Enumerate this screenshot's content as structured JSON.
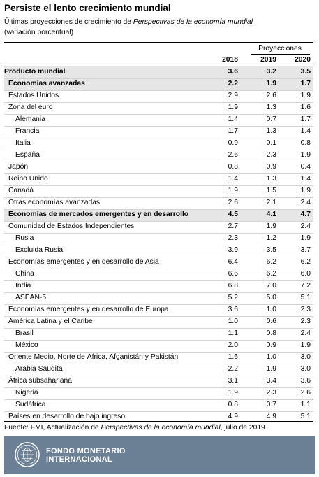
{
  "title": "Persiste el lento crecimiento mundial",
  "subtitle_prefix": "Últimas proyecciones de crecimiento de ",
  "subtitle_italic": "Perspectivas de la economía mundial",
  "subtitle_unit": "(variación porcentual)",
  "projections_label": "Proyecciones",
  "years": [
    "2018",
    "2019",
    "2020"
  ],
  "rows": [
    {
      "label": "Producto mundial",
      "indent": 0,
      "bold": true,
      "shade": true,
      "values": [
        "3.6",
        "3.2",
        "3.5"
      ]
    },
    {
      "label": "Economías avanzadas",
      "indent": 1,
      "bold": true,
      "shade": true,
      "values": [
        "2.2",
        "1.9",
        "1.7"
      ]
    },
    {
      "label": "Estados Unidos",
      "indent": 1,
      "bold": false,
      "values": [
        "2.9",
        "2.6",
        "1.9"
      ]
    },
    {
      "label": "Zona del euro",
      "indent": 1,
      "bold": false,
      "values": [
        "1.9",
        "1.3",
        "1.6"
      ]
    },
    {
      "label": "Alemania",
      "indent": 2,
      "bold": false,
      "values": [
        "1.4",
        "0.7",
        "1.7"
      ]
    },
    {
      "label": "Francia",
      "indent": 2,
      "bold": false,
      "values": [
        "1.7",
        "1.3",
        "1.4"
      ]
    },
    {
      "label": "Italia",
      "indent": 2,
      "bold": false,
      "values": [
        "0.9",
        "0.1",
        "0.8"
      ]
    },
    {
      "label": "España",
      "indent": 2,
      "bold": false,
      "values": [
        "2.6",
        "2.3",
        "1.9"
      ]
    },
    {
      "label": "Japón",
      "indent": 1,
      "bold": false,
      "values": [
        "0.8",
        "0.9",
        "0.4"
      ]
    },
    {
      "label": "Reino Unido",
      "indent": 1,
      "bold": false,
      "values": [
        "1.4",
        "1.3",
        "1.4"
      ]
    },
    {
      "label": "Canadá",
      "indent": 1,
      "bold": false,
      "values": [
        "1.9",
        "1.5",
        "1.9"
      ]
    },
    {
      "label": "Otras economías avanzadas",
      "indent": 1,
      "bold": false,
      "values": [
        "2.6",
        "2.1",
        "2.4"
      ]
    },
    {
      "label": "Economías de mercados emergentes y en desarrollo",
      "indent": 1,
      "bold": true,
      "shade": true,
      "values": [
        "4.5",
        "4.1",
        "4.7"
      ]
    },
    {
      "label": "Comunidad de Estados Independientes",
      "indent": 1,
      "bold": false,
      "values": [
        "2.7",
        "1.9",
        "2.4"
      ]
    },
    {
      "label": "Rusia",
      "indent": 2,
      "bold": false,
      "values": [
        "2.3",
        "1.2",
        "1.9"
      ]
    },
    {
      "label": "Excluida Rusia",
      "indent": 2,
      "bold": false,
      "values": [
        "3.9",
        "3.5",
        "3.7"
      ]
    },
    {
      "label": "Economías emergentes y en desarrollo de Asia",
      "indent": 1,
      "bold": false,
      "values": [
        "6.4",
        "6.2",
        "6.2"
      ]
    },
    {
      "label": "China",
      "indent": 2,
      "bold": false,
      "values": [
        "6.6",
        "6.2",
        "6.0"
      ]
    },
    {
      "label": "India",
      "indent": 2,
      "bold": false,
      "values": [
        "6.8",
        "7.0",
        "7.2"
      ]
    },
    {
      "label": "ASEAN-5",
      "indent": 2,
      "bold": false,
      "values": [
        "5.2",
        "5.0",
        "5.1"
      ]
    },
    {
      "label": "Economías emergentes y en desarrollo de Europa",
      "indent": 1,
      "bold": false,
      "values": [
        "3.6",
        "1.0",
        "2.3"
      ]
    },
    {
      "label": "América Latina y el Caribe",
      "indent": 1,
      "bold": false,
      "values": [
        "1.0",
        "0.6",
        "2.3"
      ]
    },
    {
      "label": "Brasil",
      "indent": 2,
      "bold": false,
      "values": [
        "1.1",
        "0.8",
        "2.4"
      ]
    },
    {
      "label": "México",
      "indent": 2,
      "bold": false,
      "values": [
        "2.0",
        "0.9",
        "1.9"
      ]
    },
    {
      "label": "Oriente Medio, Norte de África, Afganistán y Pakistán",
      "indent": 1,
      "bold": false,
      "values": [
        "1.6",
        "1.0",
        "3.0"
      ]
    },
    {
      "label": "Arabia Saudita",
      "indent": 2,
      "bold": false,
      "values": [
        "2.2",
        "1.9",
        "3.0"
      ]
    },
    {
      "label": "África subsahariana",
      "indent": 1,
      "bold": false,
      "values": [
        "3.1",
        "3.4",
        "3.6"
      ]
    },
    {
      "label": "Nigeria",
      "indent": 2,
      "bold": false,
      "values": [
        "1.9",
        "2.3",
        "2.6"
      ]
    },
    {
      "label": "Sudáfrica",
      "indent": 2,
      "bold": false,
      "values": [
        "0.8",
        "0.7",
        "1.1"
      ]
    },
    {
      "label": "Países en desarrollo de bajo ingreso",
      "indent": 1,
      "bold": false,
      "values": [
        "4.9",
        "4.9",
        "5.1"
      ]
    }
  ],
  "footnote_prefix": "Fuente: FMI, Actualización de ",
  "footnote_italic": "Perspectivas de la economía mundial",
  "footnote_suffix": ", julio de 2019.",
  "org_line1": "FONDO MONETARIO",
  "org_line2": "INTERNACIONAL",
  "footer_color": "#6b7f95",
  "shade_color": "#e6e6e6",
  "logo_icon": "imf-seal-icon"
}
